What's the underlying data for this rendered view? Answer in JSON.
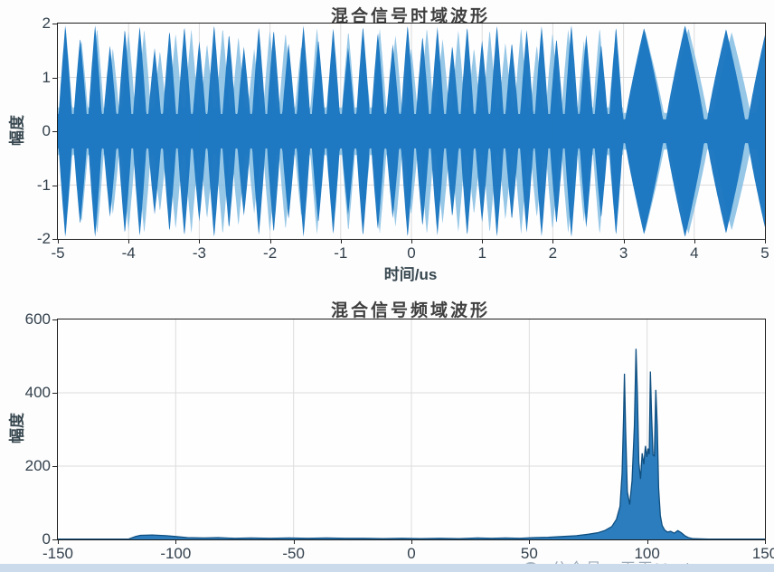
{
  "watermark": {
    "text": "公众号：王王Math",
    "logo": "circle-logo"
  },
  "colors": {
    "signal_blue": "#1b77c0",
    "signal_light_blue": "#84bde2",
    "spectrum_fill": "#2176bb",
    "spectrum_stroke": "#0f4f80",
    "grid": "#dcdcdc",
    "axis": "#1c1c1c",
    "bottom_strip": "#cbdbeb"
  },
  "chart_data": [
    {
      "type": "line",
      "title": "混合信号时域波形",
      "xlabel": "时间/us",
      "ylabel": "幅度",
      "xlim": [
        -5,
        5
      ],
      "ylim": [
        -2,
        2
      ],
      "xticks": [
        -5,
        -4,
        -3,
        -2,
        -1,
        0,
        1,
        2,
        3,
        4,
        5
      ],
      "yticks": [
        -2,
        -1,
        0,
        1,
        2
      ],
      "grid": true,
      "legend": null,
      "description": "Dense two-tone beat waveform symmetric about 0; narrow spindle lobes (period ~0.21 us) from -5 to 3 us, wider lobes (period ~0.58 us) from 3 to 5 us, envelope peaks ~1.6-2.0",
      "waveform": {
        "kind": "beat-envelope",
        "transition_t": 3.0,
        "segments": [
          {
            "t0": -5.0,
            "period": 0.2105,
            "pinch": 0.32,
            "shape_pow": 0.85,
            "peaks": [
              1.98,
              1.75,
              1.99,
              1.6,
              1.92,
              1.97,
              1.55,
              1.88,
              1.96,
              1.68,
              1.99,
              1.82,
              1.58,
              1.95,
              1.9,
              1.64,
              1.98,
              1.72,
              1.93,
              1.56,
              1.97,
              1.85,
              1.62,
              1.99,
              1.78,
              1.94,
              1.6,
              1.96,
              1.7,
              1.98,
              1.66,
              1.9,
              1.97,
              1.74,
              1.99,
              1.8,
              1.63,
              1.95
            ]
          },
          {
            "t0": 3.0,
            "period": 0.58,
            "pinch": 0.22,
            "shape_pow": 0.85,
            "peaks": [
              1.92,
              1.97,
              1.9,
              1.96
            ]
          }
        ]
      }
    },
    {
      "type": "line",
      "title": "混合信号频域波形",
      "xlabel": "",
      "ylabel": "幅度",
      "xlim": [
        -150,
        150
      ],
      "ylim": [
        0,
        600
      ],
      "xticks": [
        -150,
        -100,
        -50,
        0,
        50,
        100,
        150
      ],
      "yticks": [
        0,
        200,
        400,
        600
      ],
      "grid": true,
      "legend": null,
      "description": "Spectrum: near-zero baseline, small plateau ~12 high around -115..-105, slow rise after +60, spike cluster 88-106 with peaks ~452/520/458/408, decays to ~0 by 120",
      "points": [
        [
          -150,
          1
        ],
        [
          -120,
          1
        ],
        [
          -117,
          8
        ],
        [
          -115,
          11
        ],
        [
          -110,
          12
        ],
        [
          -104,
          10
        ],
        [
          -100,
          8
        ],
        [
          -95,
          5
        ],
        [
          -88,
          4
        ],
        [
          -82,
          5
        ],
        [
          -75,
          3
        ],
        [
          -68,
          4
        ],
        [
          -60,
          3
        ],
        [
          -52,
          4
        ],
        [
          -44,
          3
        ],
        [
          -36,
          4
        ],
        [
          -28,
          3
        ],
        [
          -20,
          3
        ],
        [
          -12,
          2
        ],
        [
          -4,
          3
        ],
        [
          4,
          2
        ],
        [
          12,
          3
        ],
        [
          20,
          2
        ],
        [
          28,
          4
        ],
        [
          34,
          3
        ],
        [
          40,
          4
        ],
        [
          46,
          3
        ],
        [
          52,
          5
        ],
        [
          58,
          6
        ],
        [
          64,
          8
        ],
        [
          70,
          10
        ],
        [
          75,
          14
        ],
        [
          79,
          18
        ],
        [
          82,
          24
        ],
        [
          85,
          35
        ],
        [
          87,
          55
        ],
        [
          88.5,
          90
        ],
        [
          89.4,
          180
        ],
        [
          90,
          330
        ],
        [
          90.4,
          452
        ],
        [
          90.9,
          300
        ],
        [
          91.6,
          130
        ],
        [
          92.6,
          95
        ],
        [
          93.6,
          160
        ],
        [
          94.6,
          310
        ],
        [
          95.3,
          520
        ],
        [
          95.9,
          390
        ],
        [
          96.5,
          210
        ],
        [
          97.2,
          165
        ],
        [
          97.9,
          235
        ],
        [
          98.6,
          205
        ],
        [
          99.3,
          255
        ],
        [
          99.9,
          225
        ],
        [
          100.4,
          248
        ],
        [
          100.9,
          232
        ],
        [
          101.4,
          458
        ],
        [
          101.9,
          340
        ],
        [
          102.5,
          230
        ],
        [
          103.1,
          228
        ],
        [
          103.7,
          408
        ],
        [
          104.3,
          310
        ],
        [
          104.9,
          140
        ],
        [
          105.6,
          65
        ],
        [
          106.4,
          38
        ],
        [
          107.4,
          26
        ],
        [
          108.6,
          20
        ],
        [
          110,
          22
        ],
        [
          111.5,
          17
        ],
        [
          113,
          24
        ],
        [
          114.5,
          18
        ],
        [
          116,
          10
        ],
        [
          117.5,
          5
        ],
        [
          119.5,
          2
        ],
        [
          126,
          1
        ],
        [
          150,
          1
        ]
      ]
    }
  ]
}
